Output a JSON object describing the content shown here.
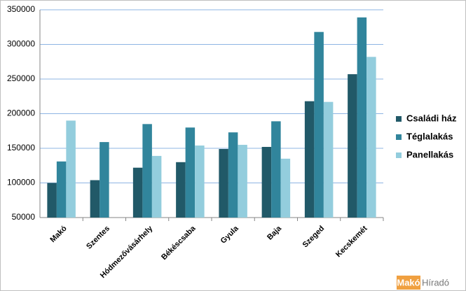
{
  "chart_data": {
    "type": "bar",
    "categories": [
      "Makó",
      "Szentes",
      "Hódmezővásárhely",
      "Békéscsaba",
      "Gyula",
      "Baja",
      "Szeged",
      "Kecskemét"
    ],
    "series": [
      {
        "name": "Családi ház",
        "color": "#215968",
        "values": [
          100000,
          104000,
          122000,
          130000,
          149000,
          152000,
          218000,
          257000
        ]
      },
      {
        "name": "Téglalakás",
        "color": "#31859c",
        "values": [
          131000,
          159000,
          185000,
          180000,
          173000,
          189000,
          318000,
          339000
        ]
      },
      {
        "name": "Panellakás",
        "color": "#93cddd",
        "values": [
          190000,
          null,
          139000,
          154000,
          155000,
          135000,
          217000,
          282000
        ]
      }
    ],
    "ylim": [
      50000,
      350000
    ],
    "yticks": [
      50000,
      100000,
      150000,
      200000,
      250000,
      300000,
      350000
    ],
    "grid": true,
    "legend": "right"
  },
  "watermark": {
    "brand": "Makó",
    "suffix": "Híradó"
  }
}
